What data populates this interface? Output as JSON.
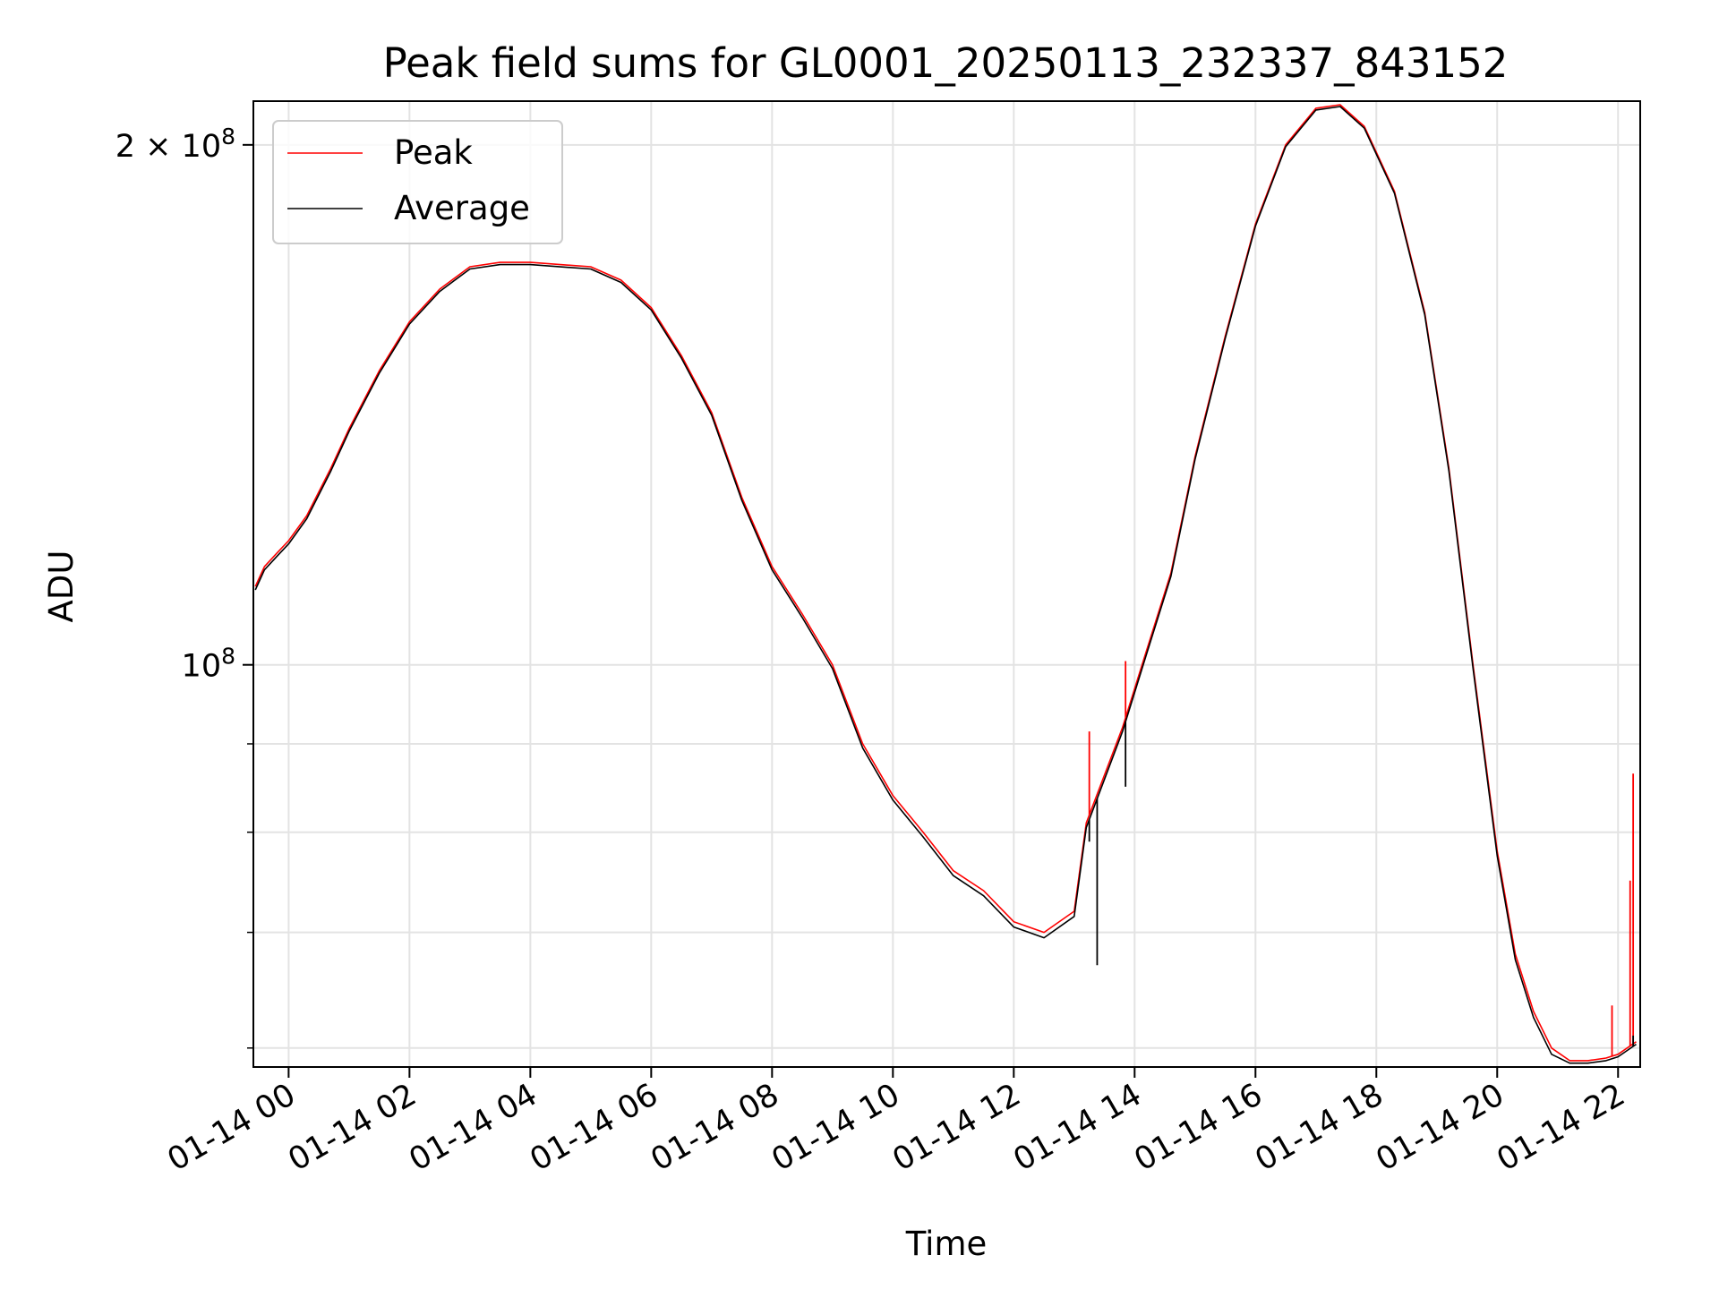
{
  "chart_data": {
    "type": "line",
    "title": "Peak field sums for GL0001_20250113_232337_843152",
    "xlabel": "Time",
    "ylabel": "ADU",
    "yscale": "log",
    "xlim": [
      "01-13 23:25",
      "01-14 22:22"
    ],
    "ylim": [
      58500000,
      212000000
    ],
    "grid": true,
    "legend_position": "upper left",
    "x_tick_labels": [
      "01-14 00",
      "01-14 02",
      "01-14 04",
      "01-14 06",
      "01-14 08",
      "01-14 10",
      "01-14 12",
      "01-14 14",
      "01-14 16",
      "01-14 18",
      "01-14 20",
      "01-14 22"
    ],
    "y_tick_labels": [
      {
        "value": 200000000,
        "mantissa": "2",
        "times": "×",
        "base": "10",
        "exp": "8"
      },
      {
        "value": 100000000,
        "mantissa": "",
        "times": "",
        "base": "10",
        "exp": "8"
      }
    ],
    "x_unit": "hours since 01-14 00:00",
    "series": [
      {
        "name": "Peak",
        "color": "#ff0000",
        "points": [
          [
            -0.55,
            111000000
          ],
          [
            -0.5,
            112000000
          ],
          [
            -0.4,
            114000000
          ],
          [
            -0.2,
            116000000
          ],
          [
            0.0,
            118000000
          ],
          [
            0.3,
            122000000
          ],
          [
            0.7,
            130000000
          ],
          [
            1.0,
            137000000
          ],
          [
            1.5,
            148000000
          ],
          [
            2.0,
            158000000
          ],
          [
            2.5,
            165000000
          ],
          [
            3.0,
            170000000
          ],
          [
            3.5,
            171000000
          ],
          [
            4.0,
            171000000
          ],
          [
            5.0,
            170000000
          ],
          [
            5.5,
            167000000
          ],
          [
            6.0,
            161000000
          ],
          [
            6.5,
            151000000
          ],
          [
            7.0,
            140000000
          ],
          [
            7.5,
            125000000
          ],
          [
            8.0,
            114000000
          ],
          [
            8.5,
            107000000
          ],
          [
            9.0,
            100000000
          ],
          [
            9.5,
            90000000
          ],
          [
            10.0,
            84000000
          ],
          [
            10.5,
            80000000
          ],
          [
            11.0,
            76000000
          ],
          [
            11.5,
            74000000
          ],
          [
            12.0,
            71000000
          ],
          [
            12.5,
            70000000
          ],
          [
            13.0,
            72000000
          ],
          [
            13.2,
            81000000
          ],
          [
            13.8,
            92000000
          ],
          [
            14.2,
            102000000
          ],
          [
            14.6,
            113000000
          ],
          [
            15.0,
            132000000
          ],
          [
            15.5,
            155000000
          ],
          [
            16.0,
            180000000
          ],
          [
            16.5,
            200000000
          ],
          [
            17.0,
            210000000
          ],
          [
            17.4,
            211000000
          ],
          [
            17.8,
            205000000
          ],
          [
            18.3,
            188000000
          ],
          [
            18.8,
            160000000
          ],
          [
            19.2,
            130000000
          ],
          [
            19.6,
            100000000
          ],
          [
            20.0,
            78000000
          ],
          [
            20.3,
            68000000
          ],
          [
            20.6,
            63000000
          ],
          [
            20.9,
            60000000
          ],
          [
            21.2,
            59000000
          ],
          [
            21.5,
            59000000
          ],
          [
            21.8,
            59200000
          ],
          [
            22.0,
            59500000
          ],
          [
            22.3,
            60500000
          ]
        ]
      },
      {
        "name": "Average",
        "color": "#000000",
        "points": [
          [
            -0.55,
            110500000
          ],
          [
            -0.5,
            111500000
          ],
          [
            -0.4,
            113500000
          ],
          [
            -0.2,
            115500000
          ],
          [
            0.0,
            117500000
          ],
          [
            0.3,
            121500000
          ],
          [
            0.7,
            129500000
          ],
          [
            1.0,
            136500000
          ],
          [
            1.5,
            147500000
          ],
          [
            2.0,
            157500000
          ],
          [
            2.5,
            164500000
          ],
          [
            3.0,
            169500000
          ],
          [
            3.5,
            170500000
          ],
          [
            4.0,
            170500000
          ],
          [
            5.0,
            169500000
          ],
          [
            5.5,
            166500000
          ],
          [
            6.0,
            160500000
          ],
          [
            6.5,
            150500000
          ],
          [
            7.0,
            139500000
          ],
          [
            7.5,
            124500000
          ],
          [
            8.0,
            113500000
          ],
          [
            8.5,
            106500000
          ],
          [
            9.0,
            99500000
          ],
          [
            9.5,
            89500000
          ],
          [
            10.0,
            83500000
          ],
          [
            10.5,
            79500000
          ],
          [
            11.0,
            75500000
          ],
          [
            11.5,
            73500000
          ],
          [
            12.0,
            70500000
          ],
          [
            12.5,
            69500000
          ],
          [
            13.0,
            71500000
          ],
          [
            13.2,
            80500000
          ],
          [
            13.8,
            91500000
          ],
          [
            14.2,
            101500000
          ],
          [
            14.6,
            112500000
          ],
          [
            15.0,
            131500000
          ],
          [
            15.5,
            154500000
          ],
          [
            16.0,
            179500000
          ],
          [
            16.5,
            199500000
          ],
          [
            17.0,
            209500000
          ],
          [
            17.4,
            210500000
          ],
          [
            17.8,
            204500000
          ],
          [
            18.3,
            187500000
          ],
          [
            18.8,
            159500000
          ],
          [
            19.2,
            129500000
          ],
          [
            19.6,
            99500000
          ],
          [
            20.0,
            77500000
          ],
          [
            20.3,
            67500000
          ],
          [
            20.6,
            62500000
          ],
          [
            20.9,
            59500000
          ],
          [
            21.2,
            58800000
          ],
          [
            21.5,
            58800000
          ],
          [
            21.8,
            59000000
          ],
          [
            22.0,
            59300000
          ],
          [
            22.3,
            60300000
          ]
        ]
      }
    ],
    "spikes": [
      {
        "series": "Peak",
        "x": 13.25,
        "y": 91500000
      },
      {
        "series": "Peak",
        "x": 13.85,
        "y": 100500000
      },
      {
        "series": "Peak",
        "x": 21.9,
        "y": 63500000
      },
      {
        "series": "Peak",
        "x": 22.2,
        "y": 75000000
      },
      {
        "series": "Peak",
        "x": 22.25,
        "y": 86500000
      },
      {
        "series": "Average",
        "x": 13.25,
        "y": 79000000
      },
      {
        "series": "Average",
        "x": 13.38,
        "y": 67000000
      },
      {
        "series": "Average",
        "x": 13.85,
        "y": 85000000
      },
      {
        "series": "Average",
        "x": 22.25,
        "y": 61000000
      }
    ]
  }
}
